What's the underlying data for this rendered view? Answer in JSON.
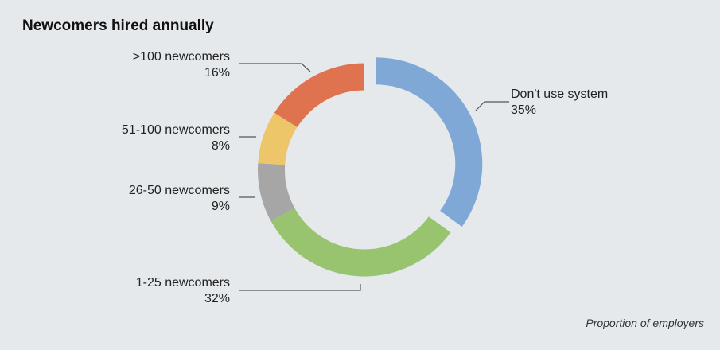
{
  "chart_data": {
    "type": "pie",
    "donut": true,
    "title": "Newcomers hired annually",
    "footnote": "Proportion of employers",
    "slices": [
      {
        "label": "Don't use system",
        "value": 35,
        "value_label": "35%",
        "color": "#7fa8d6",
        "exploded": true
      },
      {
        "label": "1-25 newcomers",
        "value": 32,
        "value_label": "32%",
        "color": "#98c46f"
      },
      {
        "label": "26-50 newcomers",
        "value": 9,
        "value_label": "9%",
        "color": "#a6a6a6"
      },
      {
        "label": "51-100 newcomers",
        "value": 8,
        "value_label": "8%",
        "color": "#edc66a"
      },
      {
        "label": ">100 newcomers",
        "value": 16,
        "value_label": "16%",
        "color": "#df7350"
      }
    ],
    "start": "top",
    "direction": "clockwise"
  }
}
